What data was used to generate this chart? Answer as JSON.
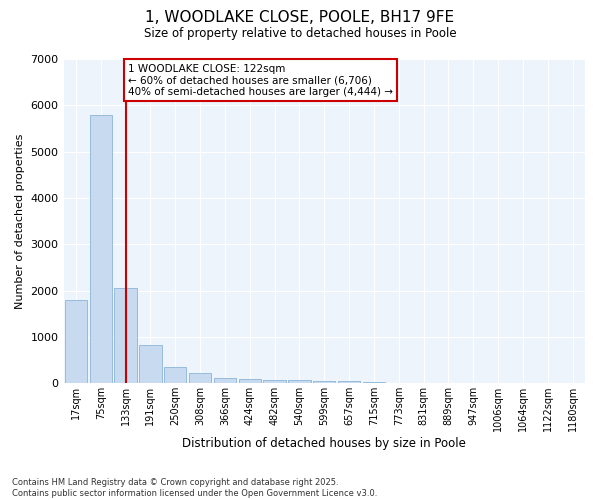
{
  "title": "1, WOODLAKE CLOSE, POOLE, BH17 9FE",
  "subtitle": "Size of property relative to detached houses in Poole",
  "xlabel": "Distribution of detached houses by size in Poole",
  "ylabel": "Number of detached properties",
  "categories": [
    "17sqm",
    "75sqm",
    "133sqm",
    "191sqm",
    "250sqm",
    "308sqm",
    "366sqm",
    "424sqm",
    "482sqm",
    "540sqm",
    "599sqm",
    "657sqm",
    "715sqm",
    "773sqm",
    "831sqm",
    "889sqm",
    "947sqm",
    "1006sqm",
    "1064sqm",
    "1122sqm",
    "1180sqm"
  ],
  "values": [
    1800,
    5800,
    2050,
    830,
    355,
    215,
    110,
    90,
    70,
    60,
    50,
    40,
    30,
    0,
    0,
    0,
    0,
    0,
    0,
    0,
    0
  ],
  "bar_color": "#c8daf0",
  "bar_edge_color": "#8ab4d8",
  "vline_color": "#cc0000",
  "vline_xindex": 2.0,
  "annotation_text": "1 WOODLAKE CLOSE: 122sqm\n← 60% of detached houses are smaller (6,706)\n40% of semi-detached houses are larger (4,444) →",
  "ann_box_edgecolor": "#cc0000",
  "ylim": [
    0,
    7000
  ],
  "yticks": [
    0,
    1000,
    2000,
    3000,
    4000,
    5000,
    6000,
    7000
  ],
  "bg_color": "#ffffff",
  "plot_bg_color": "#eef4fc",
  "grid_color": "#ffffff",
  "footer": "Contains HM Land Registry data © Crown copyright and database right 2025.\nContains public sector information licensed under the Open Government Licence v3.0."
}
